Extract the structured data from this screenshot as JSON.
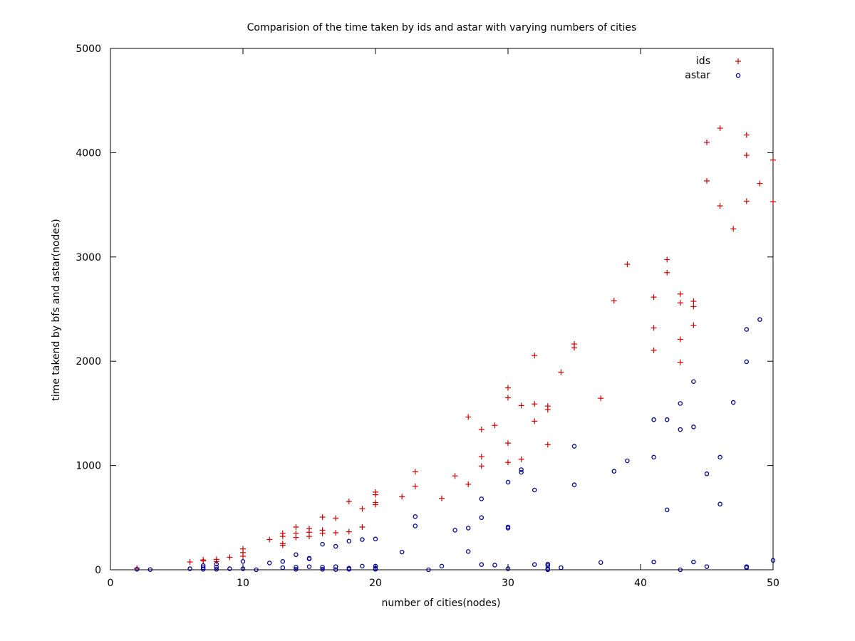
{
  "chart_data": {
    "type": "scatter",
    "title": "Comparision of the time taken by ids and astar with varying numbers of cities",
    "xlabel": "number of cities(nodes)",
    "ylabel": "time takend by bfs and astar(nodes)",
    "xlim": [
      0,
      50
    ],
    "ylim": [
      0,
      5000
    ],
    "xticks": [
      0,
      10,
      20,
      30,
      40,
      50
    ],
    "yticks": [
      0,
      1000,
      2000,
      3000,
      4000,
      5000
    ],
    "grid": false,
    "legend_position": "top-right",
    "series": [
      {
        "name": "ids",
        "marker": "plus",
        "color": "#cc0000",
        "points": [
          [
            2,
            15
          ],
          [
            6,
            75
          ],
          [
            7,
            95
          ],
          [
            7,
            85
          ],
          [
            8,
            100
          ],
          [
            8,
            80
          ],
          [
            9,
            120
          ],
          [
            10,
            200
          ],
          [
            10,
            165
          ],
          [
            10,
            130
          ],
          [
            12,
            290
          ],
          [
            13,
            350
          ],
          [
            13,
            320
          ],
          [
            13,
            250
          ],
          [
            13,
            235
          ],
          [
            14,
            410
          ],
          [
            14,
            350
          ],
          [
            14,
            310
          ],
          [
            15,
            395
          ],
          [
            15,
            360
          ],
          [
            15,
            320
          ],
          [
            16,
            505
          ],
          [
            16,
            380
          ],
          [
            16,
            350
          ],
          [
            17,
            495
          ],
          [
            17,
            355
          ],
          [
            18,
            655
          ],
          [
            18,
            365
          ],
          [
            19,
            585
          ],
          [
            19,
            410
          ],
          [
            20,
            745
          ],
          [
            20,
            720
          ],
          [
            20,
            645
          ],
          [
            20,
            625
          ],
          [
            22,
            700
          ],
          [
            23,
            940
          ],
          [
            23,
            800
          ],
          [
            25,
            685
          ],
          [
            26,
            900
          ],
          [
            27,
            1465
          ],
          [
            27,
            820
          ],
          [
            28,
            1345
          ],
          [
            28,
            1085
          ],
          [
            28,
            995
          ],
          [
            29,
            1385
          ],
          [
            30,
            1745
          ],
          [
            30,
            1650
          ],
          [
            30,
            1215
          ],
          [
            30,
            1030
          ],
          [
            31,
            1575
          ],
          [
            31,
            1060
          ],
          [
            32,
            2055
          ],
          [
            32,
            1590
          ],
          [
            32,
            1425
          ],
          [
            33,
            1570
          ],
          [
            33,
            1535
          ],
          [
            33,
            1200
          ],
          [
            34,
            1895
          ],
          [
            35,
            2165
          ],
          [
            35,
            2130
          ],
          [
            37,
            1645
          ],
          [
            38,
            2580
          ],
          [
            39,
            2930
          ],
          [
            41,
            2615
          ],
          [
            41,
            2320
          ],
          [
            41,
            2105
          ],
          [
            42,
            2975
          ],
          [
            42,
            2850
          ],
          [
            43,
            2645
          ],
          [
            43,
            2560
          ],
          [
            43,
            2210
          ],
          [
            43,
            1990
          ],
          [
            44,
            2575
          ],
          [
            44,
            2525
          ],
          [
            44,
            2345
          ],
          [
            45,
            4100
          ],
          [
            45,
            3730
          ],
          [
            46,
            4235
          ],
          [
            46,
            3490
          ],
          [
            47,
            3270
          ],
          [
            48,
            4170
          ],
          [
            48,
            3975
          ],
          [
            48,
            3535
          ],
          [
            49,
            3705
          ],
          [
            50,
            3930
          ],
          [
            50,
            3530
          ]
        ]
      },
      {
        "name": "astar",
        "marker": "circle",
        "color": "#00008b",
        "points": [
          [
            2,
            5
          ],
          [
            3,
            2
          ],
          [
            6,
            10
          ],
          [
            7,
            40
          ],
          [
            7,
            20
          ],
          [
            7,
            5
          ],
          [
            8,
            55
          ],
          [
            8,
            25
          ],
          [
            8,
            5
          ],
          [
            9,
            10
          ],
          [
            10,
            80
          ],
          [
            10,
            10
          ],
          [
            11,
            0
          ],
          [
            12,
            65
          ],
          [
            13,
            80
          ],
          [
            13,
            20
          ],
          [
            14,
            145
          ],
          [
            14,
            25
          ],
          [
            14,
            5
          ],
          [
            15,
            110
          ],
          [
            15,
            105
          ],
          [
            15,
            30
          ],
          [
            16,
            245
          ],
          [
            16,
            25
          ],
          [
            16,
            5
          ],
          [
            17,
            225
          ],
          [
            17,
            30
          ],
          [
            17,
            2
          ],
          [
            18,
            275
          ],
          [
            18,
            15
          ],
          [
            18,
            5
          ],
          [
            19,
            290
          ],
          [
            19,
            35
          ],
          [
            20,
            295
          ],
          [
            20,
            35
          ],
          [
            20,
            15
          ],
          [
            20,
            5
          ],
          [
            22,
            170
          ],
          [
            23,
            510
          ],
          [
            23,
            420
          ],
          [
            24,
            0
          ],
          [
            25,
            35
          ],
          [
            26,
            380
          ],
          [
            27,
            400
          ],
          [
            27,
            175
          ],
          [
            28,
            680
          ],
          [
            28,
            500
          ],
          [
            28,
            50
          ],
          [
            29,
            45
          ],
          [
            30,
            840
          ],
          [
            30,
            410
          ],
          [
            30,
            400
          ],
          [
            30,
            10
          ],
          [
            31,
            960
          ],
          [
            31,
            935
          ],
          [
            32,
            765
          ],
          [
            32,
            50
          ],
          [
            33,
            55
          ],
          [
            33,
            40
          ],
          [
            33,
            10
          ],
          [
            33,
            0
          ],
          [
            34,
            20
          ],
          [
            35,
            1185
          ],
          [
            35,
            815
          ],
          [
            37,
            70
          ],
          [
            38,
            945
          ],
          [
            39,
            1045
          ],
          [
            41,
            1440
          ],
          [
            41,
            1080
          ],
          [
            41,
            75
          ],
          [
            42,
            1440
          ],
          [
            42,
            575
          ],
          [
            43,
            1595
          ],
          [
            43,
            1345
          ],
          [
            43,
            0
          ],
          [
            44,
            1805
          ],
          [
            44,
            1370
          ],
          [
            44,
            75
          ],
          [
            45,
            920
          ],
          [
            45,
            30
          ],
          [
            46,
            1080
          ],
          [
            46,
            630
          ],
          [
            47,
            1605
          ],
          [
            48,
            2305
          ],
          [
            48,
            1995
          ],
          [
            48,
            30
          ],
          [
            48,
            20
          ],
          [
            49,
            2400
          ],
          [
            50,
            90
          ]
        ]
      }
    ]
  }
}
